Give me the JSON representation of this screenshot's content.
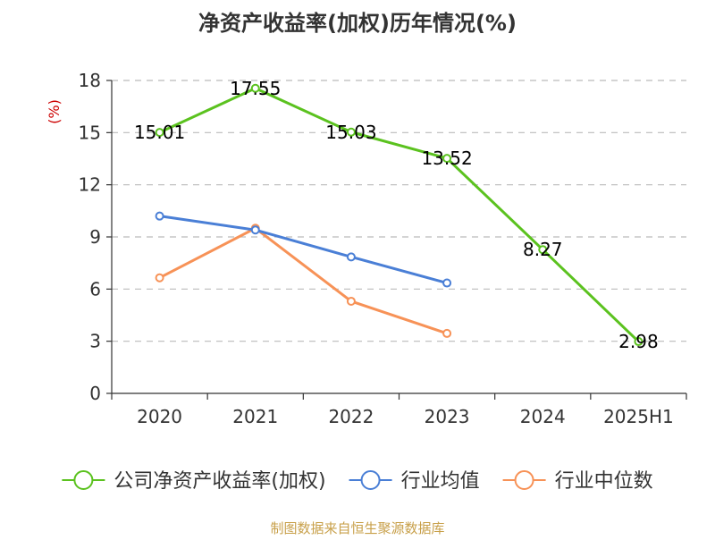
{
  "chart_data": {
    "type": "line",
    "title": "净资产收益率(加权)历年情况(%)",
    "ylabel": "(%)",
    "xlabel": "",
    "ylim": [
      0,
      18
    ],
    "yticks": [
      0,
      3,
      6,
      9,
      12,
      15,
      18
    ],
    "categories": [
      "2020",
      "2021",
      "2022",
      "2023",
      "2024",
      "2025H1"
    ],
    "grid": true,
    "legend_position": "bottom",
    "series": [
      {
        "name": "公司净资产收益率(加权)",
        "color": "#5bc21f",
        "values": [
          15.01,
          17.55,
          15.03,
          13.52,
          8.27,
          2.98
        ],
        "labels": [
          "15.01",
          "17.55",
          "15.03",
          "13.52",
          "8.27",
          "2.98"
        ]
      },
      {
        "name": "行业均值",
        "color": "#4a7fd6",
        "values": [
          10.2,
          9.4,
          7.85,
          6.35,
          null,
          null
        ]
      },
      {
        "name": "行业中位数",
        "color": "#f79257",
        "values": [
          6.65,
          9.5,
          5.3,
          3.45,
          null,
          null
        ]
      }
    ]
  },
  "footer": {
    "source": "制图数据来自恒生聚源数据库"
  }
}
